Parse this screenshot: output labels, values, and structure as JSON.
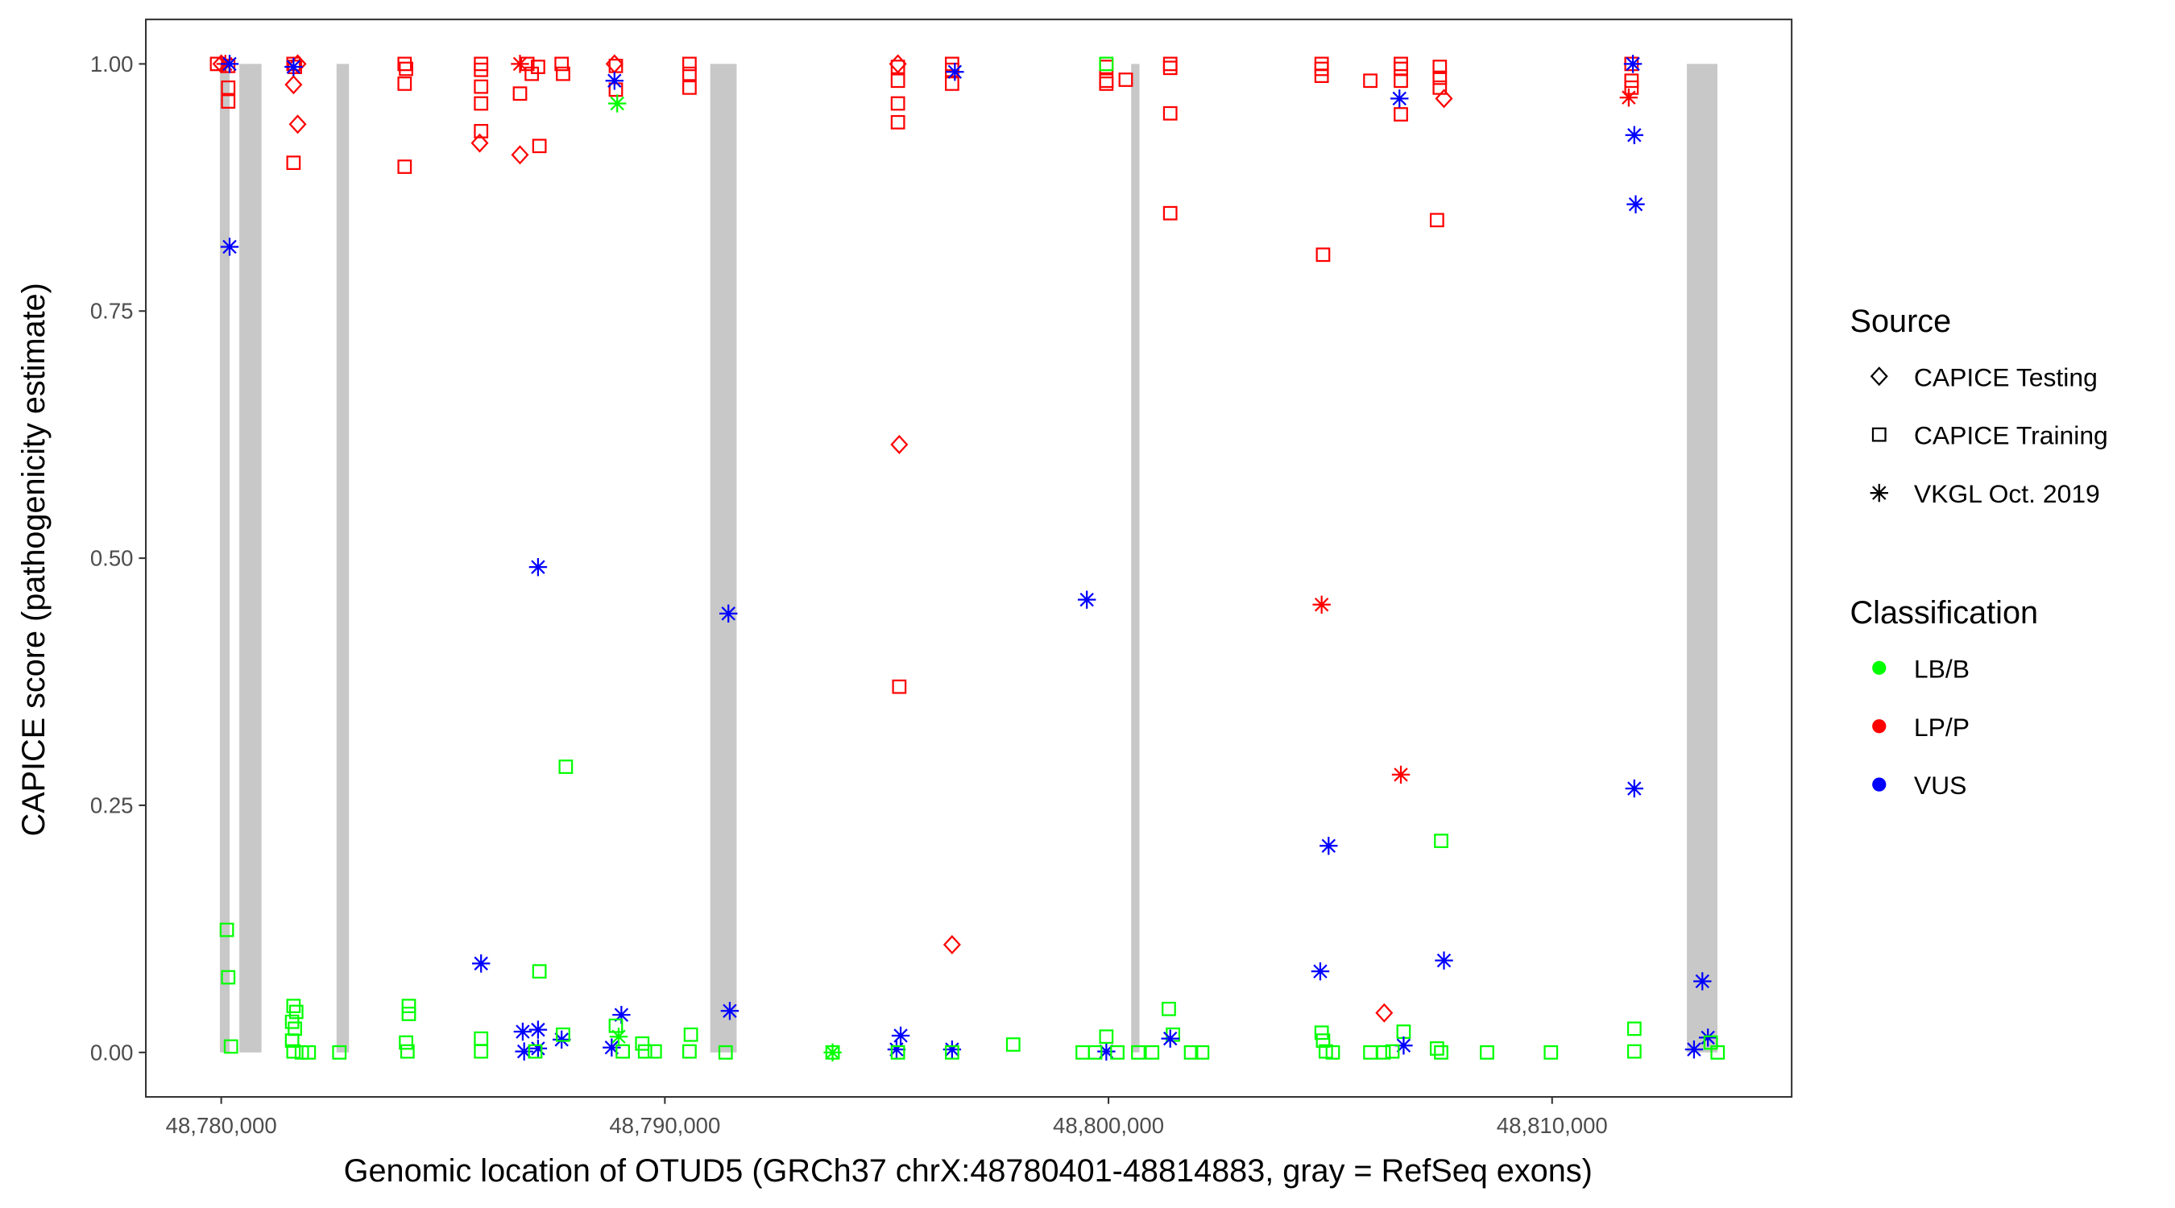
{
  "chart_data": {
    "type": "scatter",
    "xlabel": "Genomic location of OTUD5 (GRCh37 chrX:48780401-48814883, gray = RefSeq exons)",
    "ylabel": "CAPICE score (pathogenicity estimate)",
    "xlim": [
      48778300,
      48815400
    ],
    "ylim": [
      -0.045,
      1.045
    ],
    "x_ticks": [
      48780000,
      48790000,
      48800000,
      48810000
    ],
    "x_tick_labels": [
      "48,780,000",
      "48,790,000",
      "48,800,000",
      "48,810,000"
    ],
    "y_ticks": [
      0,
      0.25,
      0.5,
      0.75,
      1.0
    ],
    "y_tick_labels": [
      "0.00",
      "0.25",
      "0.50",
      "0.75",
      "1.00"
    ],
    "grid": false,
    "legend_placement": "right",
    "exons": [
      [
        48779969,
        48780188
      ],
      [
        48780407,
        48780908
      ],
      [
        48782599,
        48782880
      ],
      [
        48791023,
        48791618
      ],
      [
        48800511,
        48800699
      ],
      [
        48813038,
        48813727
      ]
    ],
    "exon_color": "#C8C8C8",
    "legend": {
      "source_title": "Source",
      "sources": [
        {
          "name": "CAPICE Testing",
          "shape": "diamond"
        },
        {
          "name": "CAPICE Training",
          "shape": "square"
        },
        {
          "name": "VKGL Oct. 2019",
          "shape": "asterisk"
        }
      ],
      "class_title": "Classification",
      "classes": [
        {
          "name": "LB/B",
          "color": "#00FF00"
        },
        {
          "name": "LP/P",
          "color": "#FF0000"
        },
        {
          "name": "VUS",
          "color": "#0000FF"
        }
      ]
    },
    "point_fields": [
      "position",
      "score",
      "source_index",
      "class"
    ],
    "points": [
      [
        48779906,
        1.0,
        1,
        "LP/P"
      ],
      [
        48780000,
        1.0,
        0,
        "LP/P"
      ],
      [
        48780094,
        1.0,
        2,
        "LP/P"
      ],
      [
        48780157,
        0.998,
        1,
        "LP/P"
      ],
      [
        48780157,
        0.976,
        1,
        "LP/P"
      ],
      [
        48780157,
        0.962,
        1,
        "LP/P"
      ],
      [
        48780188,
        1.0,
        2,
        "VUS"
      ],
      [
        48780188,
        0.815,
        2,
        "VUS"
      ],
      [
        48780126,
        0.124,
        1,
        "LB/B"
      ],
      [
        48780157,
        0.076,
        1,
        "LB/B"
      ],
      [
        48780219,
        0.006,
        1,
        "LB/B"
      ],
      [
        48781629,
        1.0,
        1,
        "LP/P"
      ],
      [
        48781723,
        1.0,
        0,
        "LP/P"
      ],
      [
        48781660,
        0.997,
        1,
        "LP/P"
      ],
      [
        48781629,
        0.979,
        0,
        "LP/P"
      ],
      [
        48781723,
        0.939,
        0,
        "LP/P"
      ],
      [
        48781629,
        0.9,
        1,
        "LP/P"
      ],
      [
        48781629,
        0.997,
        2,
        "VUS"
      ],
      [
        48781629,
        0.047,
        1,
        "LB/B"
      ],
      [
        48781691,
        0.041,
        1,
        "LB/B"
      ],
      [
        48781597,
        0.031,
        1,
        "LB/B"
      ],
      [
        48781660,
        0.024,
        1,
        "LB/B"
      ],
      [
        48781597,
        0.012,
        1,
        "LB/B"
      ],
      [
        48781629,
        0.001,
        1,
        "LB/B"
      ],
      [
        48781817,
        0.0,
        1,
        "LB/B"
      ],
      [
        48781973,
        0.0,
        1,
        "LB/B"
      ],
      [
        48782662,
        0.0,
        1,
        "LB/B"
      ],
      [
        48784134,
        1.0,
        1,
        "LP/P"
      ],
      [
        48784166,
        0.995,
        1,
        "LP/P"
      ],
      [
        48784134,
        0.98,
        1,
        "LP/P"
      ],
      [
        48784134,
        0.896,
        1,
        "LP/P"
      ],
      [
        48784228,
        0.047,
        1,
        "LB/B"
      ],
      [
        48784228,
        0.039,
        1,
        "LB/B"
      ],
      [
        48784166,
        0.01,
        1,
        "LB/B"
      ],
      [
        48784197,
        0.001,
        1,
        "LB/B"
      ],
      [
        48785857,
        1.0,
        1,
        "LP/P"
      ],
      [
        48785857,
        0.994,
        1,
        "LP/P"
      ],
      [
        48785857,
        0.977,
        1,
        "LP/P"
      ],
      [
        48785857,
        0.96,
        1,
        "LP/P"
      ],
      [
        48785857,
        0.932,
        1,
        "LP/P"
      ],
      [
        48785826,
        0.92,
        0,
        "LP/P"
      ],
      [
        48785857,
        0.09,
        2,
        "VUS"
      ],
      [
        48785857,
        0.014,
        1,
        "LB/B"
      ],
      [
        48785857,
        0.001,
        1,
        "LB/B"
      ],
      [
        48786734,
        1.0,
        2,
        "LP/P"
      ],
      [
        48786900,
        1.0,
        1,
        "LP/P"
      ],
      [
        48787141,
        0.997,
        1,
        "LP/P"
      ],
      [
        48787000,
        0.99,
        1,
        "LP/P"
      ],
      [
        48786734,
        0.97,
        1,
        "LP/P"
      ],
      [
        48786734,
        0.908,
        0,
        "LP/P"
      ],
      [
        48787172,
        0.917,
        1,
        "LP/P"
      ],
      [
        48787141,
        0.491,
        2,
        "VUS"
      ],
      [
        48786796,
        0.021,
        2,
        "VUS"
      ],
      [
        48787141,
        0.023,
        2,
        "VUS"
      ],
      [
        48786828,
        0.001,
        2,
        "VUS"
      ],
      [
        48787141,
        0.004,
        2,
        "VUS"
      ],
      [
        48787172,
        0.082,
        1,
        "LB/B"
      ],
      [
        48787078,
        0.001,
        1,
        "LB/B"
      ],
      [
        48787673,
        1.0,
        1,
        "LP/P"
      ],
      [
        48787705,
        0.99,
        1,
        "LP/P"
      ],
      [
        48787673,
        0.013,
        2,
        "VUS"
      ],
      [
        48787767,
        0.289,
        1,
        "LB/B"
      ],
      [
        48787705,
        0.018,
        1,
        "LB/B"
      ],
      [
        48788864,
        1.0,
        0,
        "LP/P"
      ],
      [
        48788895,
        0.998,
        1,
        "LP/P"
      ],
      [
        48788895,
        0.974,
        1,
        "LP/P"
      ],
      [
        48788864,
        0.983,
        2,
        "VUS"
      ],
      [
        48788926,
        0.96,
        2,
        "LB/B"
      ],
      [
        48789020,
        0.038,
        2,
        "VUS"
      ],
      [
        48788801,
        0.005,
        2,
        "VUS"
      ],
      [
        48788895,
        0.027,
        1,
        "LB/B"
      ],
      [
        48789051,
        0.001,
        1,
        "LB/B"
      ],
      [
        48788958,
        0.016,
        2,
        "LB/B"
      ],
      [
        48789490,
        0.009,
        1,
        "LB/B"
      ],
      [
        48789553,
        0.001,
        1,
        "LB/B"
      ],
      [
        48789772,
        0.001,
        1,
        "LB/B"
      ],
      [
        48790555,
        1.0,
        1,
        "LP/P"
      ],
      [
        48790555,
        0.99,
        1,
        "LP/P"
      ],
      [
        48790555,
        0.976,
        1,
        "LP/P"
      ],
      [
        48790586,
        0.018,
        1,
        "LB/B"
      ],
      [
        48790555,
        0.001,
        1,
        "LB/B"
      ],
      [
        48791432,
        0.444,
        2,
        "VUS"
      ],
      [
        48791463,
        0.042,
        2,
        "VUS"
      ],
      [
        48791369,
        0.0,
        1,
        "LB/B"
      ],
      [
        48793781,
        0.0,
        1,
        "LB/B"
      ],
      [
        48793781,
        0.0,
        2,
        "LB/B"
      ],
      [
        48795253,
        1.0,
        0,
        "LP/P"
      ],
      [
        48795253,
        0.997,
        1,
        "LP/P"
      ],
      [
        48795253,
        0.983,
        1,
        "LP/P"
      ],
      [
        48795253,
        0.96,
        1,
        "LP/P"
      ],
      [
        48795253,
        0.941,
        1,
        "LP/P"
      ],
      [
        48795284,
        0.615,
        0,
        "LP/P"
      ],
      [
        48795284,
        0.37,
        1,
        "LP/P"
      ],
      [
        48795315,
        0.017,
        2,
        "VUS"
      ],
      [
        48795222,
        0.003,
        2,
        "VUS"
      ],
      [
        48795253,
        0.0,
        1,
        "LB/B"
      ],
      [
        48796474,
        1.0,
        1,
        "LP/P"
      ],
      [
        48796474,
        0.994,
        1,
        "LP/P"
      ],
      [
        48796474,
        0.98,
        1,
        "LP/P"
      ],
      [
        48796537,
        0.992,
        2,
        "VUS"
      ],
      [
        48796474,
        0.109,
        0,
        "LP/P"
      ],
      [
        48796474,
        0.003,
        2,
        "VUS"
      ],
      [
        48796474,
        0.0,
        1,
        "LB/B"
      ],
      [
        48797852,
        0.008,
        1,
        "LB/B"
      ],
      [
        48799512,
        0.458,
        2,
        "VUS"
      ],
      [
        48799951,
        0.001,
        2,
        "VUS"
      ],
      [
        48799951,
        0.997,
        1,
        "LP/P"
      ],
      [
        48799951,
        0.983,
        1,
        "LP/P"
      ],
      [
        48799951,
        0.98,
        1,
        "LP/P"
      ],
      [
        48799951,
        1.0,
        1,
        "LB/B"
      ],
      [
        48800389,
        0.984,
        1,
        "LP/P"
      ],
      [
        48799418,
        0.0,
        1,
        "LB/B"
      ],
      [
        48799700,
        0.0,
        1,
        "LB/B"
      ],
      [
        48799951,
        0.016,
        1,
        "LB/B"
      ],
      [
        48800200,
        0.0,
        1,
        "LB/B"
      ],
      [
        48800671,
        0.0,
        1,
        "LB/B"
      ],
      [
        48800984,
        0.0,
        1,
        "LB/B"
      ],
      [
        48801392,
        1.0,
        1,
        "LP/P"
      ],
      [
        48801392,
        0.996,
        1,
        "LP/P"
      ],
      [
        48801392,
        0.95,
        1,
        "LP/P"
      ],
      [
        48801392,
        0.849,
        1,
        "LP/P"
      ],
      [
        48801360,
        0.044,
        1,
        "LB/B"
      ],
      [
        48801454,
        0.018,
        1,
        "LB/B"
      ],
      [
        48801392,
        0.014,
        2,
        "VUS"
      ],
      [
        48801861,
        0.0,
        1,
        "LB/B"
      ],
      [
        48802112,
        0.0,
        1,
        "LB/B"
      ],
      [
        48804805,
        1.0,
        1,
        "LP/P"
      ],
      [
        48804805,
        0.995,
        1,
        "LP/P"
      ],
      [
        48804805,
        0.988,
        1,
        "LP/P"
      ],
      [
        48804837,
        0.807,
        1,
        "LP/P"
      ],
      [
        48804805,
        0.453,
        2,
        "LP/P"
      ],
      [
        48804962,
        0.209,
        2,
        "VUS"
      ],
      [
        48804774,
        0.082,
        2,
        "VUS"
      ],
      [
        48804805,
        0.02,
        1,
        "LB/B"
      ],
      [
        48804837,
        0.012,
        1,
        "LB/B"
      ],
      [
        48804899,
        0.001,
        1,
        "LB/B"
      ],
      [
        48805056,
        0.0,
        1,
        "LB/B"
      ],
      [
        48805902,
        0.983,
        1,
        "LP/P"
      ],
      [
        48805902,
        0.0,
        1,
        "LB/B"
      ],
      [
        48806200,
        0.0,
        1,
        "LB/B"
      ],
      [
        48806591,
        1.0,
        1,
        "LP/P"
      ],
      [
        48806591,
        0.995,
        1,
        "LP/P"
      ],
      [
        48806591,
        0.983,
        1,
        "LP/P"
      ],
      [
        48806591,
        0.949,
        1,
        "LP/P"
      ],
      [
        48806559,
        0.965,
        2,
        "VUS"
      ],
      [
        48806591,
        0.281,
        2,
        "LP/P"
      ],
      [
        48806215,
        0.04,
        0,
        "LP/P"
      ],
      [
        48806653,
        0.021,
        1,
        "LB/B"
      ],
      [
        48806653,
        0.007,
        2,
        "VUS"
      ],
      [
        48806400,
        0.001,
        1,
        "LB/B"
      ],
      [
        48807468,
        0.997,
        1,
        "LP/P"
      ],
      [
        48807468,
        0.986,
        1,
        "LP/P"
      ],
      [
        48807468,
        0.976,
        1,
        "LP/P"
      ],
      [
        48807562,
        0.965,
        0,
        "LP/P"
      ],
      [
        48807405,
        0.842,
        1,
        "LP/P"
      ],
      [
        48807499,
        0.214,
        1,
        "LB/B"
      ],
      [
        48807562,
        0.093,
        2,
        "VUS"
      ],
      [
        48807405,
        0.004,
        1,
        "LB/B"
      ],
      [
        48807499,
        0.0,
        1,
        "LB/B"
      ],
      [
        48808533,
        0.0,
        1,
        "LB/B"
      ],
      [
        48809973,
        0.0,
        1,
        "LB/B"
      ],
      [
        48811790,
        1.0,
        1,
        "LP/P"
      ],
      [
        48811790,
        0.983,
        1,
        "LP/P"
      ],
      [
        48811790,
        0.976,
        1,
        "LP/P"
      ],
      [
        48811727,
        0.966,
        2,
        "LP/P"
      ],
      [
        48811821,
        1.0,
        2,
        "VUS"
      ],
      [
        48811853,
        0.928,
        2,
        "VUS"
      ],
      [
        48811884,
        0.858,
        2,
        "VUS"
      ],
      [
        48811853,
        0.267,
        2,
        "VUS"
      ],
      [
        48811853,
        0.024,
        1,
        "LB/B"
      ],
      [
        48811853,
        0.001,
        1,
        "LB/B"
      ],
      [
        48813387,
        0.072,
        2,
        "VUS"
      ],
      [
        48813512,
        0.015,
        2,
        "VUS"
      ],
      [
        48813199,
        0.003,
        2,
        "VUS"
      ],
      [
        48813575,
        0.01,
        1,
        "LB/B"
      ],
      [
        48813732,
        0.0,
        1,
        "LB/B"
      ]
    ]
  }
}
